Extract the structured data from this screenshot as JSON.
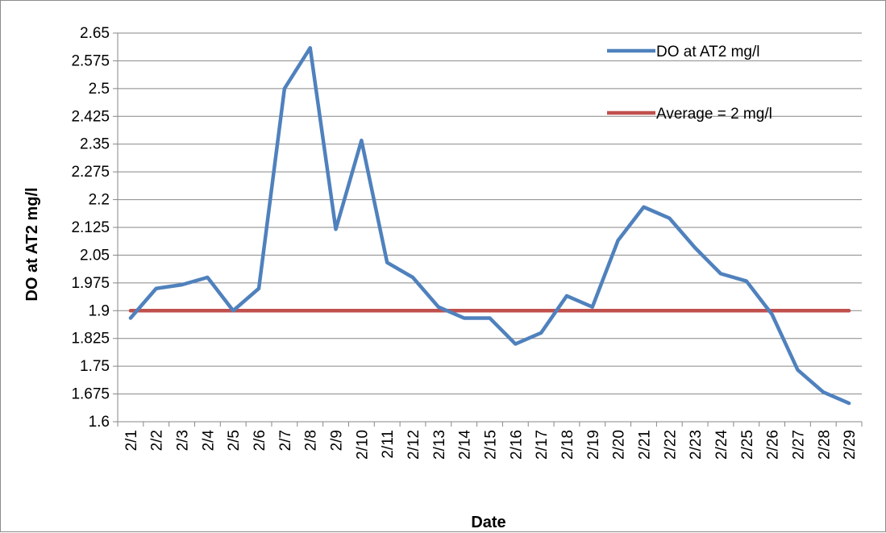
{
  "chart_data": {
    "type": "line",
    "title": "",
    "xlabel": "Date",
    "ylabel": "DO at AT2 mg/l",
    "ylim": [
      1.6,
      2.65
    ],
    "yticks": [
      "1.6",
      "1.675",
      "1.75",
      "1.825",
      "1.9",
      "1.975",
      "2.05",
      "2.125",
      "2.2",
      "2.275",
      "2.35",
      "2.425",
      "2.5",
      "2.575",
      "2.65"
    ],
    "categories": [
      "2/1",
      "2/2",
      "2/3",
      "2/4",
      "2/5",
      "2/6",
      "2/7",
      "2/8",
      "2/9",
      "2/10",
      "2/11",
      "2/12",
      "2/13",
      "2/14",
      "2/15",
      "2/16",
      "2/17",
      "2/18",
      "2/19",
      "2/20",
      "2/21",
      "2/22",
      "2/23",
      "2/24",
      "2/25",
      "2/26",
      "2/27",
      "2/28",
      "2/29"
    ],
    "grid": true,
    "legend_position": "top-right",
    "series": [
      {
        "name": "DO at AT2 mg/l",
        "color": "#4f81bd",
        "values": [
          1.88,
          1.96,
          1.97,
          1.99,
          1.9,
          1.96,
          2.5,
          2.61,
          2.12,
          2.36,
          2.03,
          1.99,
          1.91,
          1.88,
          1.88,
          1.81,
          1.84,
          1.94,
          1.91,
          2.09,
          2.18,
          2.15,
          2.07,
          2.0,
          1.98,
          1.89,
          1.74,
          1.68,
          1.65
        ]
      },
      {
        "name": "Average = 2 mg/l",
        "color": "#c0504d",
        "values": [
          1.9,
          1.9,
          1.9,
          1.9,
          1.9,
          1.9,
          1.9,
          1.9,
          1.9,
          1.9,
          1.9,
          1.9,
          1.9,
          1.9,
          1.9,
          1.9,
          1.9,
          1.9,
          1.9,
          1.9,
          1.9,
          1.9,
          1.9,
          1.9,
          1.9,
          1.9,
          1.9,
          1.9,
          1.9
        ]
      }
    ]
  }
}
